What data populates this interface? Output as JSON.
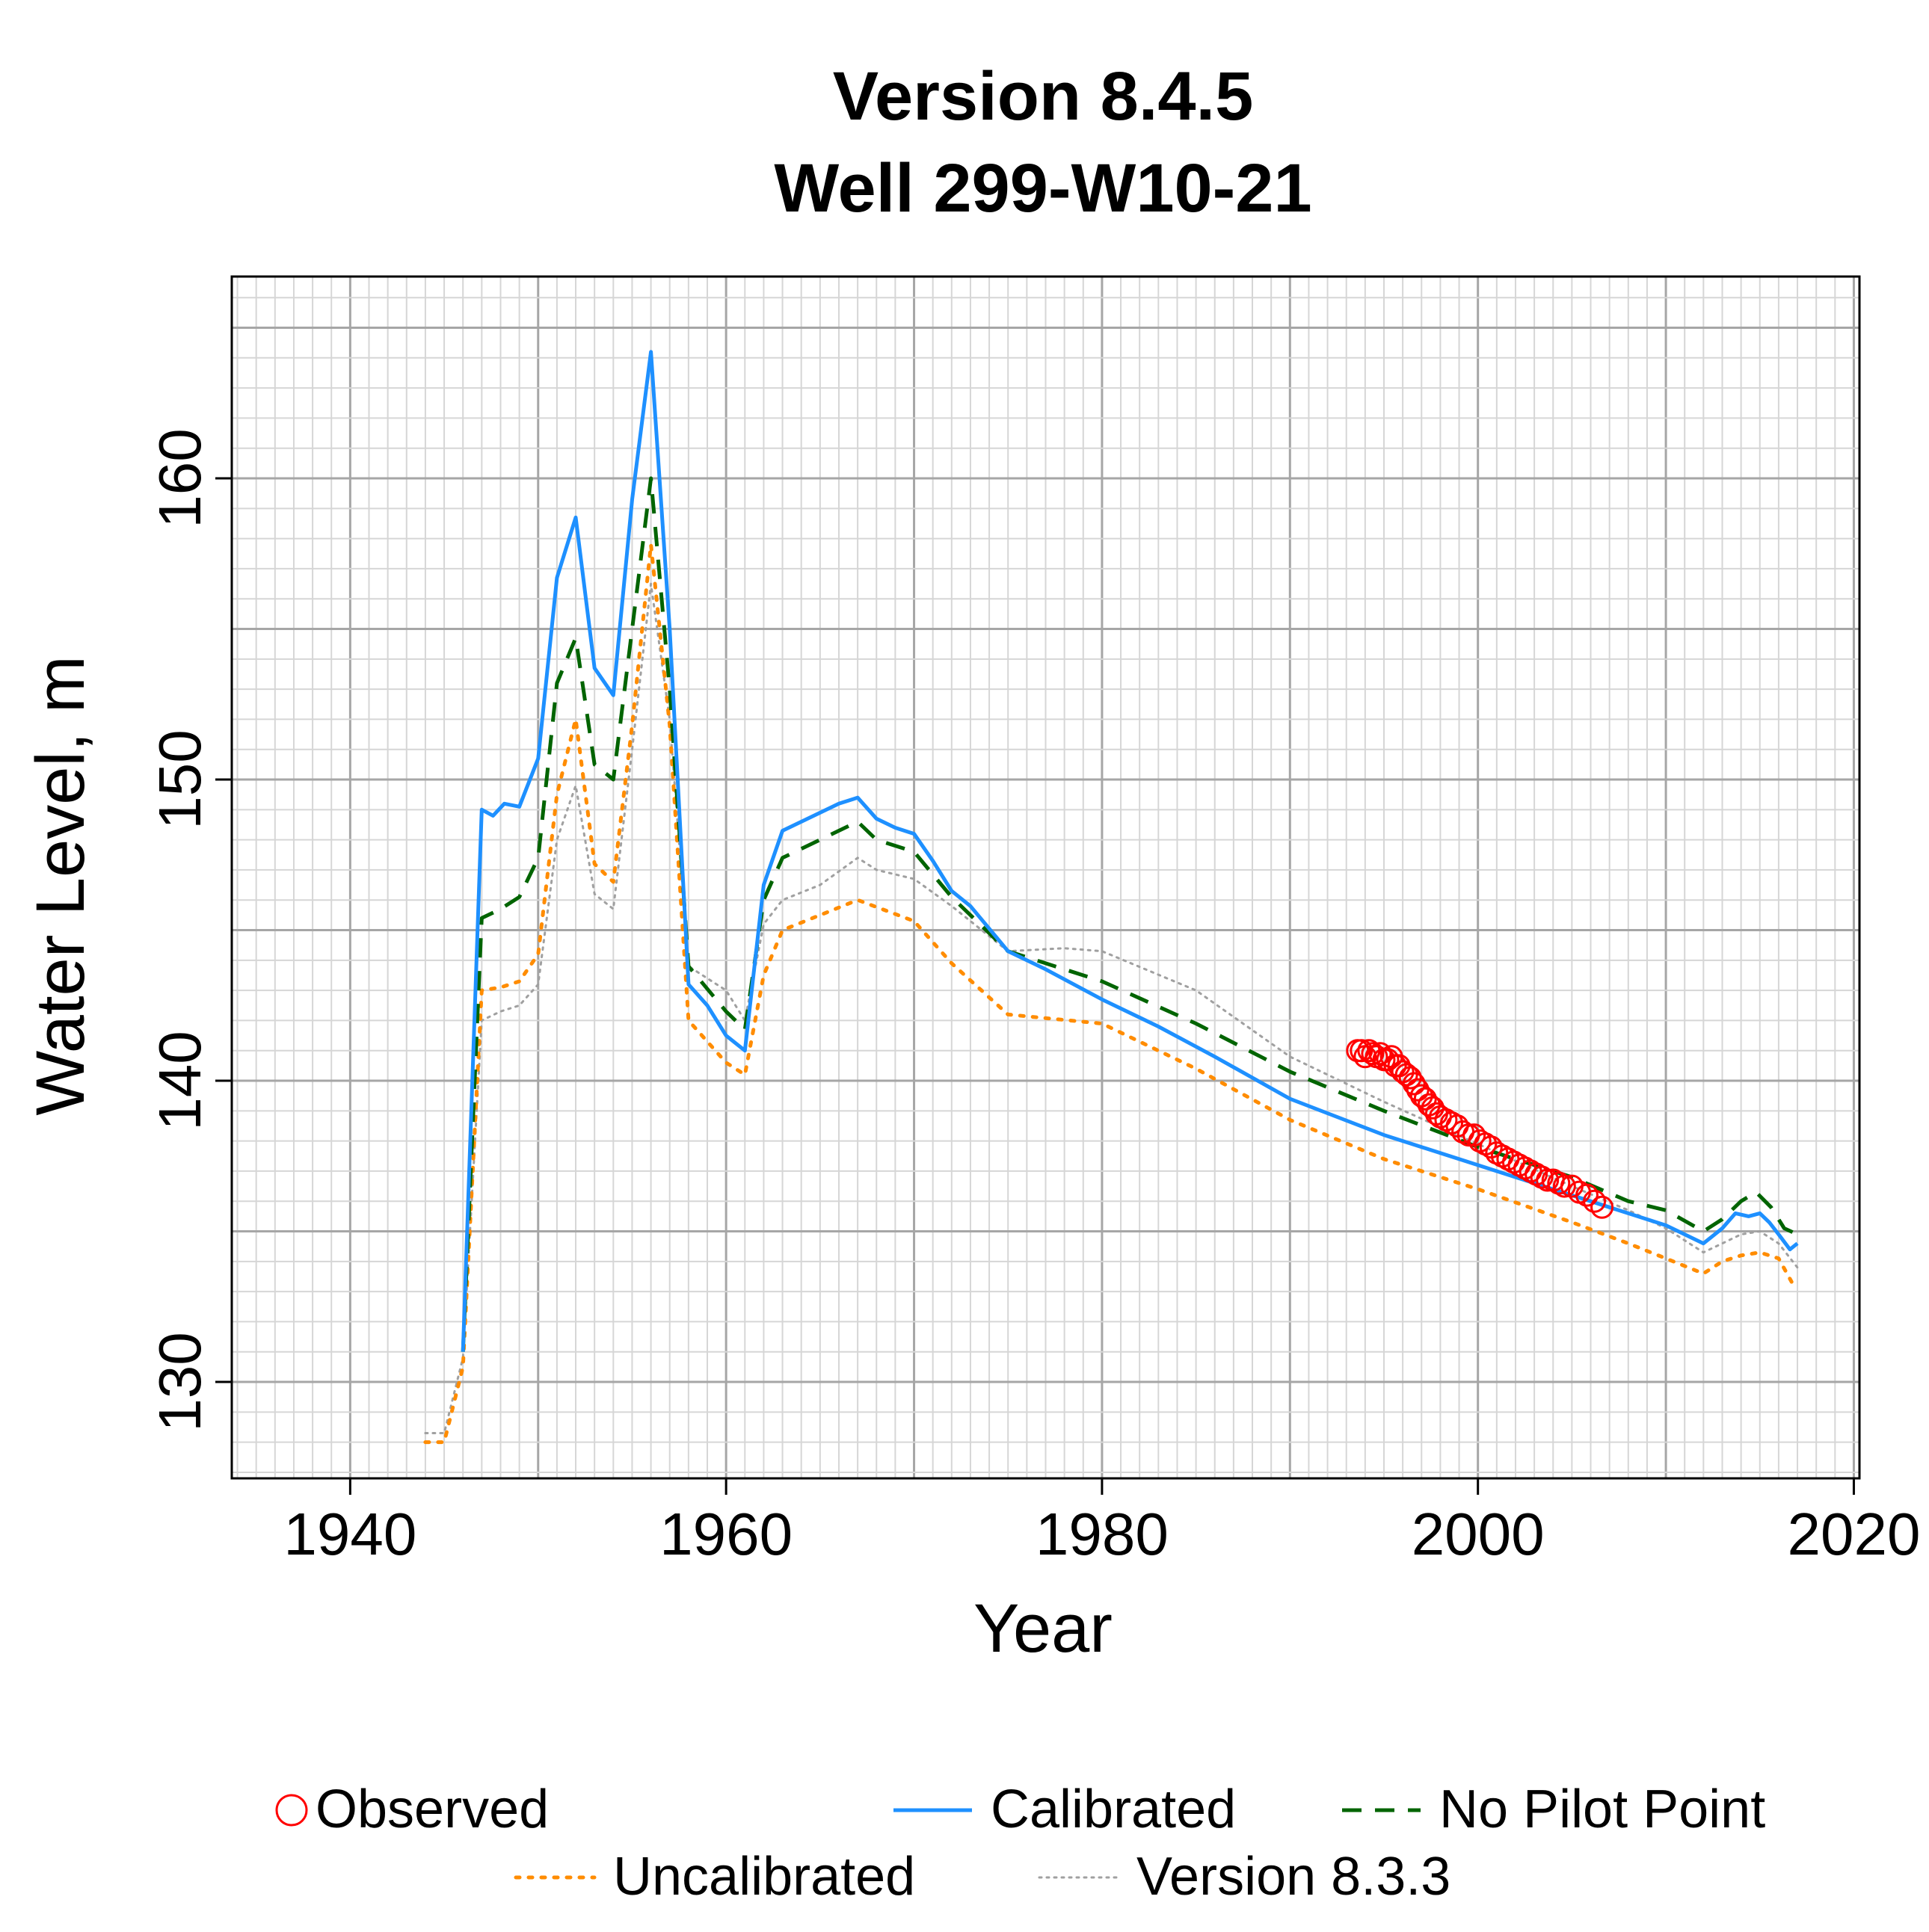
{
  "chart_data": {
    "type": "line",
    "title": "Version 8.4.5",
    "subtitle": "Well 299-W10-21",
    "xlabel": "Year",
    "ylabel": "Water Level, m",
    "xlim": [
      1933.7,
      2020.3
    ],
    "ylim": [
      126.8,
      166.7
    ],
    "x_ticks": [
      1940,
      1960,
      1980,
      2000,
      2020
    ],
    "y_ticks": [
      130,
      140,
      150,
      160
    ],
    "grid": true,
    "legend_position": "bottom",
    "series": [
      {
        "name": "Observed",
        "style": "markers",
        "color": "#ff0000",
        "points": [
          [
            1993.6,
            141.0
          ],
          [
            1993.8,
            141.0
          ],
          [
            1994.0,
            140.8
          ],
          [
            1994.2,
            141.0
          ],
          [
            1994.4,
            140.9
          ],
          [
            1994.6,
            140.8
          ],
          [
            1994.8,
            140.9
          ],
          [
            1995.0,
            140.7
          ],
          [
            1995.2,
            140.7
          ],
          [
            1995.4,
            140.8
          ],
          [
            1995.6,
            140.5
          ],
          [
            1995.8,
            140.5
          ],
          [
            1996.0,
            140.3
          ],
          [
            1996.2,
            140.2
          ],
          [
            1996.4,
            140.1
          ],
          [
            1996.6,
            139.9
          ],
          [
            1996.8,
            139.7
          ],
          [
            1997.0,
            139.5
          ],
          [
            1997.2,
            139.4
          ],
          [
            1997.4,
            139.2
          ],
          [
            1997.6,
            139.1
          ],
          [
            1997.8,
            138.9
          ],
          [
            1998.0,
            138.8
          ],
          [
            1998.3,
            138.7
          ],
          [
            1998.6,
            138.6
          ],
          [
            1998.9,
            138.5
          ],
          [
            1999.2,
            138.3
          ],
          [
            1999.5,
            138.2
          ],
          [
            1999.8,
            138.2
          ],
          [
            2000.1,
            138.0
          ],
          [
            2000.4,
            137.9
          ],
          [
            2000.7,
            137.8
          ],
          [
            2001.0,
            137.6
          ],
          [
            2001.3,
            137.5
          ],
          [
            2001.6,
            137.4
          ],
          [
            2001.9,
            137.3
          ],
          [
            2002.2,
            137.2
          ],
          [
            2002.5,
            137.1
          ],
          [
            2002.8,
            137.0
          ],
          [
            2003.1,
            136.9
          ],
          [
            2003.4,
            136.8
          ],
          [
            2003.7,
            136.7
          ],
          [
            2004.0,
            136.7
          ],
          [
            2004.3,
            136.6
          ],
          [
            2004.6,
            136.5
          ],
          [
            2005.0,
            136.5
          ],
          [
            2005.4,
            136.3
          ],
          [
            2005.8,
            136.2
          ],
          [
            2006.2,
            136.0
          ],
          [
            2006.6,
            135.8
          ]
        ]
      },
      {
        "name": "Calibrated",
        "style": "solid",
        "color": "#1e90ff",
        "points": [
          [
            1946,
            131
          ],
          [
            1947,
            149
          ],
          [
            1947.6,
            148.8
          ],
          [
            1948.2,
            149.2
          ],
          [
            1949,
            149.1
          ],
          [
            1950,
            150.7
          ],
          [
            1951,
            156.7
          ],
          [
            1952,
            158.7
          ],
          [
            1953,
            153.7
          ],
          [
            1954,
            152.8
          ],
          [
            1955,
            159.3
          ],
          [
            1956,
            164.2
          ],
          [
            1957,
            155
          ],
          [
            1958,
            143.2
          ],
          [
            1959,
            142.5
          ],
          [
            1960,
            141.5
          ],
          [
            1961,
            141
          ],
          [
            1962,
            146.5
          ],
          [
            1963,
            148.3
          ],
          [
            1965,
            148.9
          ],
          [
            1966,
            149.2
          ],
          [
            1967,
            149.4
          ],
          [
            1968,
            148.7
          ],
          [
            1969,
            148.4
          ],
          [
            1970,
            148.2
          ],
          [
            1971,
            147.3
          ],
          [
            1972,
            146.3
          ],
          [
            1973,
            145.8
          ],
          [
            1975,
            144.3
          ],
          [
            1977,
            143.7
          ],
          [
            1980,
            142.7
          ],
          [
            1983,
            141.8
          ],
          [
            1986,
            140.8
          ],
          [
            1990,
            139.4
          ],
          [
            1995,
            138.2
          ],
          [
            2000,
            137.2
          ],
          [
            2005,
            136.2
          ],
          [
            2008,
            135.6
          ],
          [
            2010,
            135.2
          ],
          [
            2012,
            134.6
          ],
          [
            2013,
            135.1
          ],
          [
            2013.7,
            135.6
          ],
          [
            2014.4,
            135.5
          ],
          [
            2015,
            135.6
          ],
          [
            2015.5,
            135.3
          ],
          [
            2016,
            134.9
          ],
          [
            2016.6,
            134.4
          ],
          [
            2017,
            134.6
          ]
        ]
      },
      {
        "name": "No Pilot Point",
        "style": "dashed",
        "color": "#006400",
        "points": [
          [
            1946,
            131
          ],
          [
            1947,
            145.4
          ],
          [
            1948,
            145.7
          ],
          [
            1949,
            146.1
          ],
          [
            1950,
            147.4
          ],
          [
            1951,
            153.2
          ],
          [
            1952,
            154.7
          ],
          [
            1953,
            150.5
          ],
          [
            1954,
            150
          ],
          [
            1955,
            155
          ],
          [
            1956,
            160
          ],
          [
            1957,
            153
          ],
          [
            1958,
            143.8
          ],
          [
            1960,
            142.3
          ],
          [
            1961,
            141.7
          ],
          [
            1962,
            146
          ],
          [
            1963,
            147.4
          ],
          [
            1967,
            148.6
          ],
          [
            1968,
            148
          ],
          [
            1970,
            147.6
          ],
          [
            1972,
            146.1
          ],
          [
            1975,
            144.3
          ],
          [
            1980,
            143.3
          ],
          [
            1985,
            141.9
          ],
          [
            1990,
            140.3
          ],
          [
            1995,
            139
          ],
          [
            2000,
            137.8
          ],
          [
            2005,
            136.8
          ],
          [
            2008,
            136
          ],
          [
            2010,
            135.7
          ],
          [
            2012,
            135
          ],
          [
            2013,
            135.4
          ],
          [
            2014,
            136
          ],
          [
            2014.8,
            136.3
          ],
          [
            2015.6,
            135.8
          ],
          [
            2016.3,
            135.1
          ],
          [
            2017,
            134.9
          ]
        ]
      },
      {
        "name": "Uncalibrated",
        "style": "dotted",
        "color": "#ff8c00",
        "points": [
          [
            1944,
            128
          ],
          [
            1945,
            128
          ],
          [
            1946,
            130.5
          ],
          [
            1947,
            143
          ],
          [
            1948,
            143.1
          ],
          [
            1949,
            143.3
          ],
          [
            1950,
            144.2
          ],
          [
            1951,
            149.5
          ],
          [
            1952,
            152
          ],
          [
            1953,
            147.2
          ],
          [
            1954,
            146.6
          ],
          [
            1955,
            151.8
          ],
          [
            1956,
            157.8
          ],
          [
            1957,
            151.8
          ],
          [
            1958,
            142
          ],
          [
            1960,
            140.6
          ],
          [
            1961,
            140.2
          ],
          [
            1962,
            143.5
          ],
          [
            1963,
            145
          ],
          [
            1965,
            145.5
          ],
          [
            1967,
            146
          ],
          [
            1970,
            145.3
          ],
          [
            1972,
            143.9
          ],
          [
            1975,
            142.2
          ],
          [
            1980,
            141.9
          ],
          [
            1985,
            140.4
          ],
          [
            1990,
            138.7
          ],
          [
            1995,
            137.4
          ],
          [
            2000,
            136.4
          ],
          [
            2005,
            135.3
          ],
          [
            2008,
            134.6
          ],
          [
            2010,
            134.1
          ],
          [
            2012,
            133.6
          ],
          [
            2013,
            134
          ],
          [
            2014,
            134.2
          ],
          [
            2015,
            134.3
          ],
          [
            2016,
            134.1
          ],
          [
            2016.8,
            133.2
          ]
        ]
      },
      {
        "name": "Version 8.3.3",
        "style": "dotted-thin",
        "color": "#a0a0a0",
        "points": [
          [
            1944,
            128.3
          ],
          [
            1945,
            128.3
          ],
          [
            1946,
            130.8
          ],
          [
            1947,
            142
          ],
          [
            1948,
            142.3
          ],
          [
            1949,
            142.5
          ],
          [
            1950,
            143.2
          ],
          [
            1951,
            148
          ],
          [
            1952,
            149.8
          ],
          [
            1953,
            146.2
          ],
          [
            1954,
            145.7
          ],
          [
            1955,
            151
          ],
          [
            1956,
            156.5
          ],
          [
            1957,
            152
          ],
          [
            1958,
            143.8
          ],
          [
            1960,
            143
          ],
          [
            1961,
            142
          ],
          [
            1962,
            145.2
          ],
          [
            1963,
            146
          ],
          [
            1965,
            146.5
          ],
          [
            1967,
            147.4
          ],
          [
            1968,
            147
          ],
          [
            1970,
            146.7
          ],
          [
            1972,
            145.8
          ],
          [
            1975,
            144.3
          ],
          [
            1978,
            144.4
          ],
          [
            1980,
            144.3
          ],
          [
            1985,
            143
          ],
          [
            1990,
            140.8
          ],
          [
            1995,
            139.3
          ],
          [
            2000,
            137.9
          ],
          [
            2005,
            136.5
          ],
          [
            2008,
            135.7
          ],
          [
            2010,
            135.1
          ],
          [
            2012,
            134.3
          ],
          [
            2013,
            134.6
          ],
          [
            2014,
            134.9
          ],
          [
            2015,
            135
          ],
          [
            2016,
            134.6
          ],
          [
            2017,
            133.8
          ]
        ]
      }
    ]
  }
}
